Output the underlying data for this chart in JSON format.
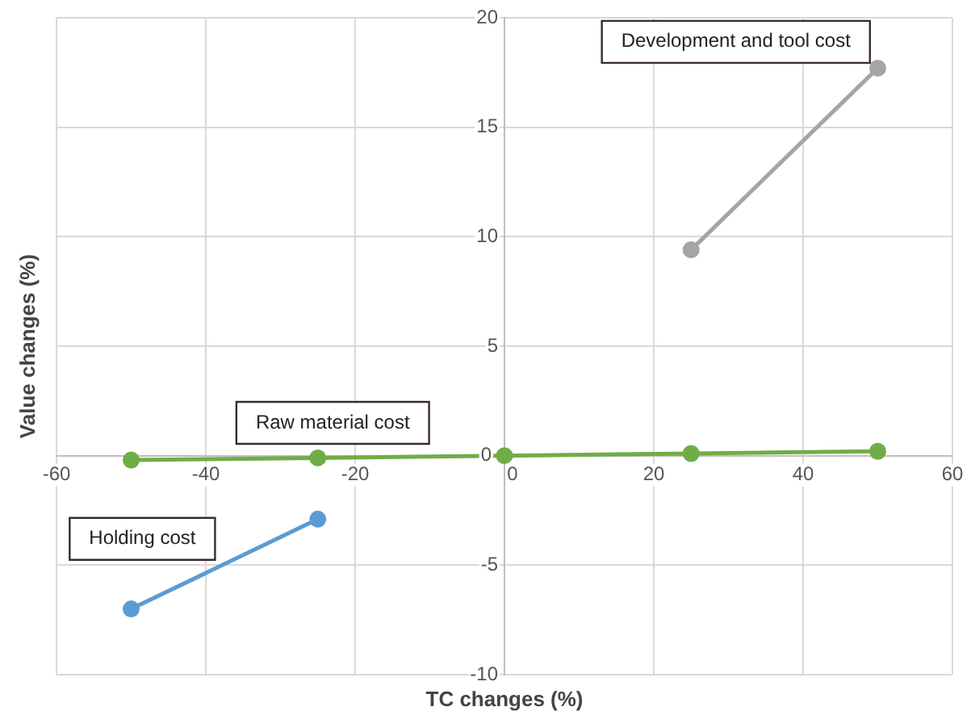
{
  "chart_data": {
    "type": "line",
    "xlabel": "TC changes (%)",
    "ylabel": "Value changes (%)",
    "xlim": [
      -60,
      60
    ],
    "xticks": [
      -60,
      -40,
      -20,
      0,
      20,
      40,
      60
    ],
    "ylim": [
      -10,
      20
    ],
    "yticks": [
      -10,
      -5,
      0,
      5,
      10,
      15,
      20
    ],
    "grid": true,
    "legend": false,
    "marker": "circle",
    "line_style": "solid",
    "series": [
      {
        "name": "Holding cost",
        "color": "#5b9bd5",
        "x": [
          -50,
          -25
        ],
        "values": [
          -7.0,
          -2.9
        ]
      },
      {
        "name": "Raw material cost",
        "color": "#70ad47",
        "x": [
          -50,
          -25,
          0,
          25,
          50
        ],
        "values": [
          -0.2,
          -0.1,
          0,
          0.1,
          0.2
        ]
      },
      {
        "name": "Development and tool cost",
        "color": "#a5a5a5",
        "x": [
          25,
          50
        ],
        "values": [
          9.4,
          17.7
        ]
      }
    ]
  }
}
